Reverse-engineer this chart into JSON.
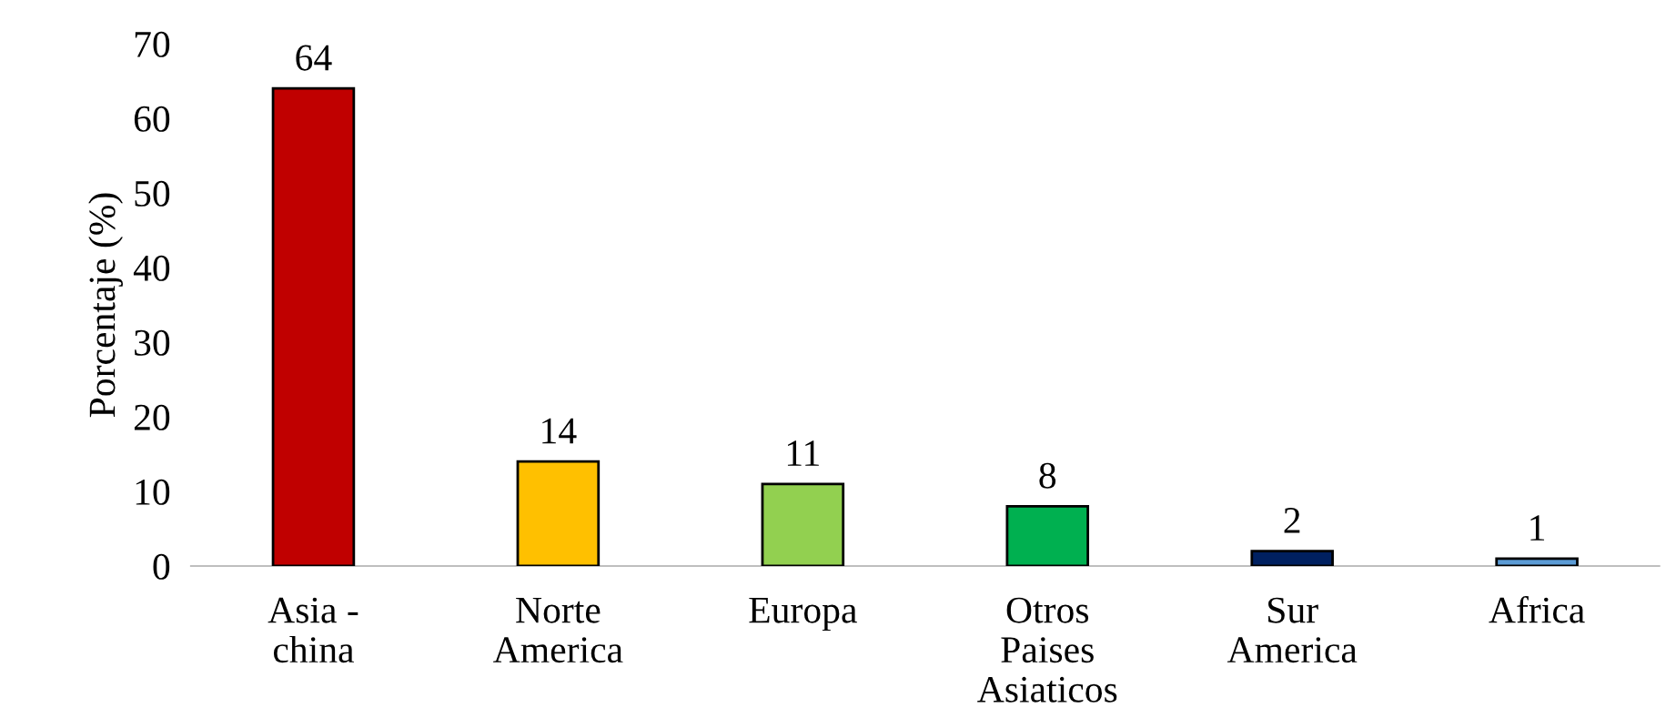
{
  "chart_data": {
    "type": "bar",
    "ylabel": "Porcentaje (%)",
    "categories": [
      "Asia -\nchina",
      "Norte\nAmerica",
      "Europa",
      "Otros\nPaises\nAsiaticos",
      "Sur\nAmerica",
      "Africa"
    ],
    "values": [
      64,
      14,
      11,
      8,
      2,
      1
    ],
    "colors": [
      "#c00000",
      "#ffc000",
      "#92d050",
      "#00b050",
      "#002060",
      "#5b9bd5"
    ],
    "ylim": [
      0,
      70
    ],
    "yticks": [
      0,
      10,
      20,
      30,
      40,
      50,
      60,
      70
    ],
    "grid": false,
    "data_labels": true
  }
}
